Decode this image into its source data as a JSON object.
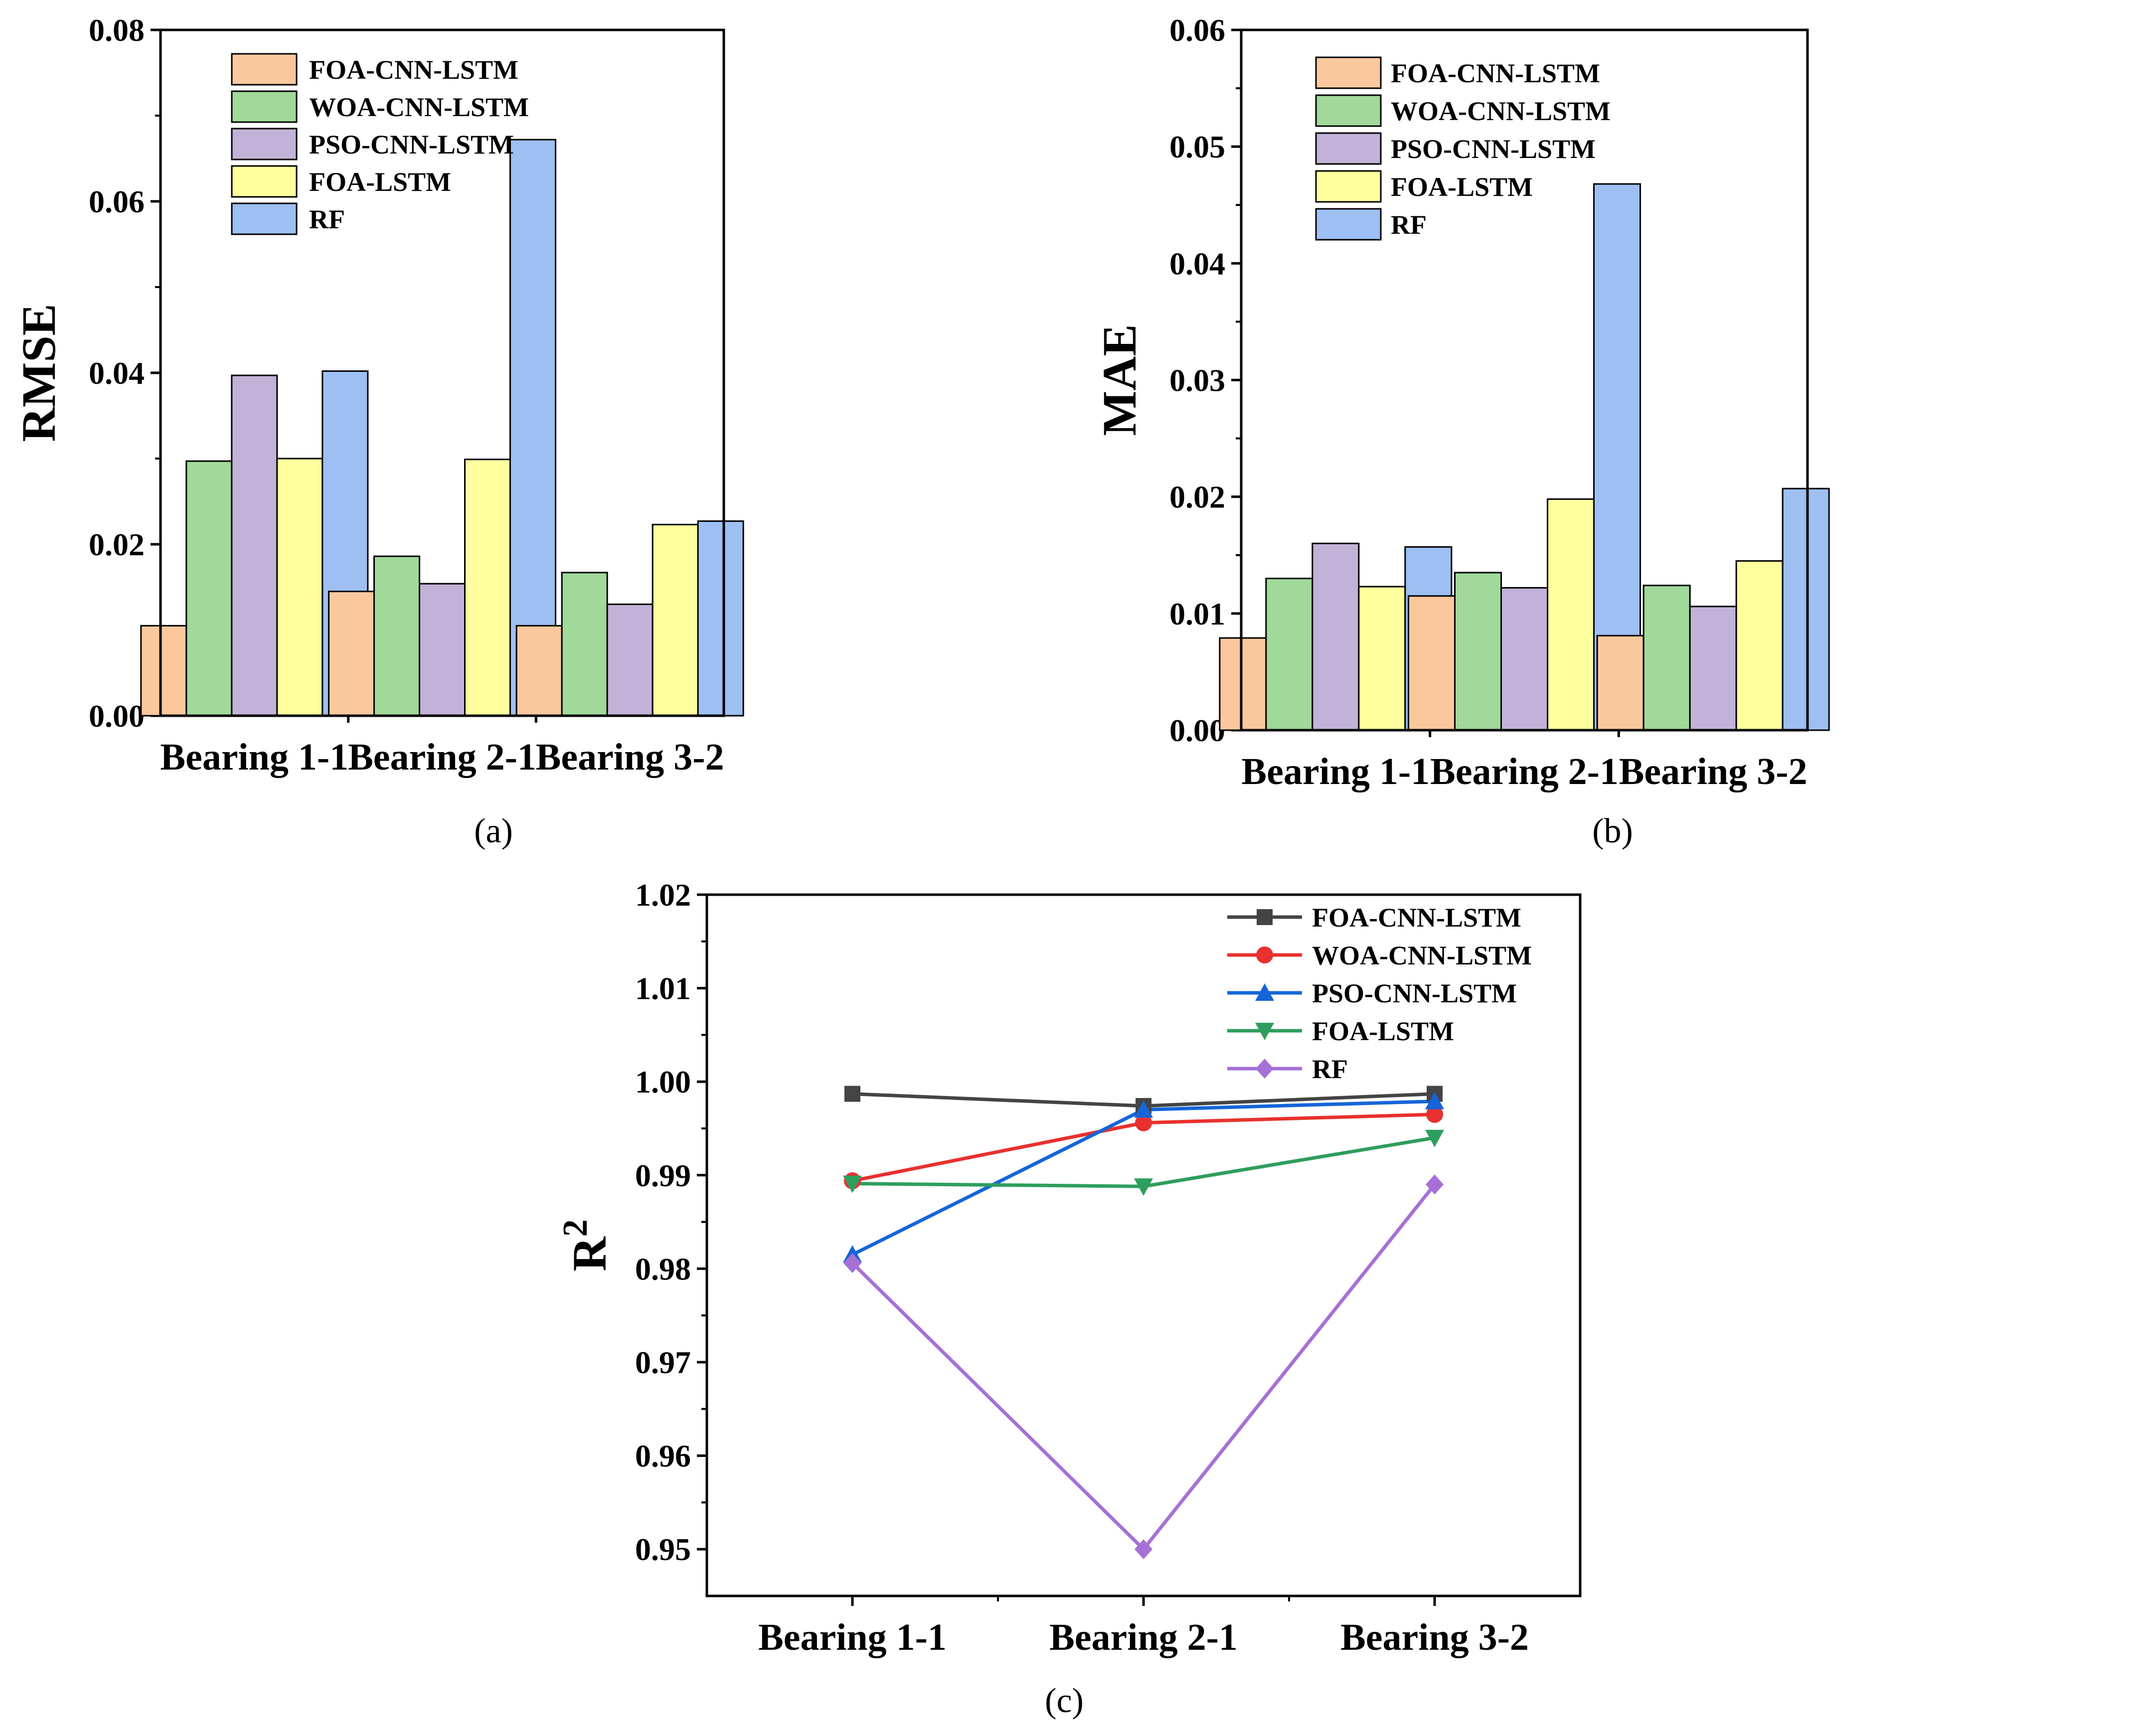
{
  "chart_data": [
    {
      "id": "a",
      "type": "bar",
      "caption": "(a)",
      "ylabel": "RMSE",
      "ylim": [
        0,
        0.08
      ],
      "yticks": [
        "0.00",
        "0.02",
        "0.04",
        "0.06",
        "0.08"
      ],
      "categories": [
        "Bearing 1-1",
        "Bearing 2-1",
        "Bearing 3-2"
      ],
      "series": [
        {
          "name": "FOA-CNN-LSTM",
          "color": "#FBC89E",
          "values": [
            0.0105,
            0.0145,
            0.0105
          ]
        },
        {
          "name": "WOA-CNN-LSTM",
          "color": "#A0D99A",
          "values": [
            0.0297,
            0.0186,
            0.0167
          ]
        },
        {
          "name": "PSO-CNN-LSTM",
          "color": "#C3B2D8",
          "values": [
            0.0397,
            0.0154,
            0.013
          ]
        },
        {
          "name": "FOA-LSTM",
          "color": "#FFFF9E",
          "values": [
            0.03,
            0.0299,
            0.0223
          ]
        },
        {
          "name": "RF",
          "color": "#9EBFF2",
          "values": [
            0.0402,
            0.0672,
            0.0227
          ]
        }
      ]
    },
    {
      "id": "b",
      "type": "bar",
      "caption": "(b)",
      "ylabel": "MAE",
      "ylim": [
        0,
        0.06
      ],
      "yticks": [
        "0.00",
        "0.01",
        "0.02",
        "0.03",
        "0.04",
        "0.05",
        "0.06"
      ],
      "categories": [
        "Bearing 1-1",
        "Bearing 2-1",
        "Bearing 3-2"
      ],
      "series": [
        {
          "name": "FOA-CNN-LSTM",
          "color": "#FBC89E",
          "values": [
            0.0079,
            0.0115,
            0.0081
          ]
        },
        {
          "name": "WOA-CNN-LSTM",
          "color": "#A0D99A",
          "values": [
            0.013,
            0.0135,
            0.0124
          ]
        },
        {
          "name": "PSO-CNN-LSTM",
          "color": "#C3B2D8",
          "values": [
            0.016,
            0.0122,
            0.0106
          ]
        },
        {
          "name": "FOA-LSTM",
          "color": "#FFFF9E",
          "values": [
            0.0123,
            0.0198,
            0.0145
          ]
        },
        {
          "name": "RF",
          "color": "#9EBFF2",
          "values": [
            0.0157,
            0.0468,
            0.0207
          ]
        }
      ]
    },
    {
      "id": "c",
      "type": "line",
      "caption": "(c)",
      "ylabel": "R",
      "ylabel_sup": "2",
      "ylim": [
        0.945,
        1.02
      ],
      "yticks": [
        "0.95",
        "0.96",
        "0.97",
        "0.98",
        "0.99",
        "1.00",
        "1.01",
        "1.02"
      ],
      "categories": [
        "Bearing 1-1",
        "Bearing 2-1",
        "Bearing 3-2"
      ],
      "series": [
        {
          "name": "FOA-CNN-LSTM",
          "color": "#444444",
          "marker": "square",
          "values": [
            0.9987,
            0.9974,
            0.9987
          ]
        },
        {
          "name": "WOA-CNN-LSTM",
          "color": "#E8312E",
          "marker": "circle",
          "values": [
            0.9894,
            0.9956,
            0.9965
          ]
        },
        {
          "name": "PSO-CNN-LSTM",
          "color": "#1565D8",
          "marker": "triangle-up",
          "values": [
            0.9815,
            0.997,
            0.9979
          ]
        },
        {
          "name": "FOA-LSTM",
          "color": "#2E9E5E",
          "marker": "triangle-down",
          "values": [
            0.9891,
            0.9888,
            0.994
          ]
        },
        {
          "name": "RF",
          "color": "#A670D6",
          "marker": "diamond",
          "values": [
            0.9806,
            0.95,
            0.989
          ]
        }
      ]
    }
  ]
}
